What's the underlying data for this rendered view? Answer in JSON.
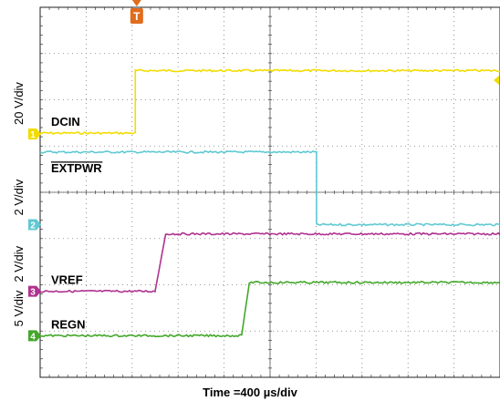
{
  "chart_data": {
    "type": "line",
    "title": "",
    "xlabel": "Time =400 µs/div",
    "x_units": "div",
    "xlim": [
      0,
      10
    ],
    "ylim": [
      0,
      8
    ],
    "grid": true,
    "trigger_marker": "T",
    "channels": [
      {
        "id": "1",
        "name": "DCIN",
        "scale": "20 V/div",
        "color": "#f2dc00",
        "name_overline": false,
        "x": [
          0,
          2.07,
          2.07,
          10
        ],
        "y": [
          5.28,
          5.28,
          6.63,
          6.63
        ]
      },
      {
        "id": "2",
        "name": "EXTPWR",
        "scale": "2 V/div",
        "color": "#5fc9d2",
        "name_overline": true,
        "x": [
          0,
          6.01,
          6.01,
          10
        ],
        "y": [
          4.87,
          4.87,
          3.3,
          3.3
        ]
      },
      {
        "id": "3",
        "name": "VREF",
        "scale": "2 V/div",
        "color": "#b0328f",
        "name_overline": false,
        "x": [
          0,
          2.5,
          2.73,
          10
        ],
        "y": [
          1.86,
          1.86,
          3.1,
          3.1
        ]
      },
      {
        "id": "4",
        "name": "REGN",
        "scale": "5 V/div",
        "color": "#43a82a",
        "name_overline": false,
        "x": [
          0,
          4.38,
          4.55,
          10
        ],
        "y": [
          0.9,
          0.9,
          2.05,
          2.05
        ]
      }
    ]
  }
}
